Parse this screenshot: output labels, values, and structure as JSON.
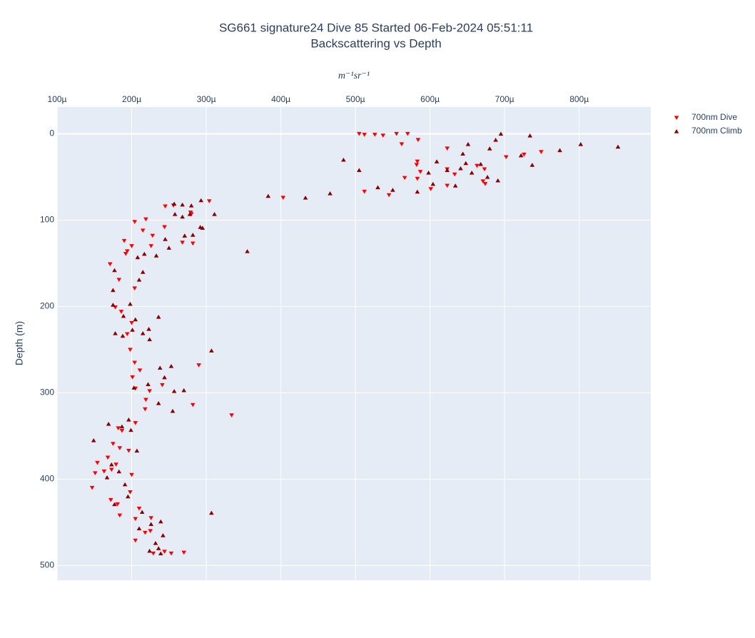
{
  "chart_data": {
    "type": "scatter",
    "title": "SG661 signature24 Dive 85 Started 06-Feb-2024 05:51:11",
    "subtitle": "Backscattering vs Depth",
    "x_label": "m⁻¹sr⁻¹",
    "y_label": "Depth (m)",
    "xlim": [
      0.0001,
      0.000896
    ],
    "ylim": [
      517,
      -31
    ],
    "xticks": [
      {
        "value": 0.0001,
        "label": "100µ"
      },
      {
        "value": 0.0002,
        "label": "200µ"
      },
      {
        "value": 0.0003,
        "label": "300µ"
      },
      {
        "value": 0.0004,
        "label": "400µ"
      },
      {
        "value": 0.0005,
        "label": "500µ"
      },
      {
        "value": 0.0006,
        "label": "600µ"
      },
      {
        "value": 0.0007,
        "label": "700µ"
      },
      {
        "value": 0.0008,
        "label": "800µ"
      }
    ],
    "yticks": [
      0,
      100,
      200,
      300,
      400,
      500
    ],
    "grid": true,
    "legend": "right",
    "series": [
      {
        "name": "700nm Dive",
        "color": "#ff0000",
        "marker": "triangle-down",
        "x": [
          0.000505,
          0.000512,
          0.000526,
          0.000537,
          0.000555,
          0.00057,
          0.000562,
          0.000584,
          0.000623,
          0.000749,
          0.000702,
          0.000726,
          0.000583,
          0.000582,
          0.000587,
          0.000566,
          0.000623,
          0.000633,
          0.000673,
          0.000663,
          0.000583,
          0.000601,
          0.000512,
          0.000545,
          0.000623,
          0.000674,
          0.000671,
          0.000403,
          0.000245,
          0.000256,
          0.000279,
          0.000304,
          0.00028,
          0.000204,
          0.000219,
          0.000244,
          0.000215,
          0.000228,
          0.000268,
          0.000282,
          0.00019,
          0.000226,
          0.000194,
          0.0002,
          0.000171,
          0.000192,
          0.000183,
          0.000204,
          0.000178,
          0.000186,
          0.0002,
          0.000194,
          0.000198,
          0.000204,
          0.00029,
          0.000211,
          0.000201,
          0.000224,
          0.000205,
          0.000219,
          0.000241,
          0.000282,
          0.000334,
          0.000218,
          0.000205,
          0.000182,
          0.000175,
          0.000184,
          0.000196,
          0.000168,
          0.000154,
          0.000163,
          0.000173,
          0.000151,
          0.000147,
          0.000187,
          0.000179,
          0.0002,
          0.000198,
          0.000172,
          0.000181,
          0.00021,
          0.000184,
          0.000205,
          0.000226,
          0.000218,
          0.000205,
          0.000225,
          0.00027,
          0.000253,
          0.000244,
          0.000229
        ],
        "y": [
          0,
          1,
          1,
          2,
          0,
          0,
          12,
          7,
          17,
          21,
          27,
          24,
          32,
          36,
          44,
          51,
          41,
          47,
          41,
          37,
          52,
          64,
          67,
          71,
          60,
          58,
          55,
          74,
          84,
          83,
          91,
          78,
          93,
          102,
          99,
          108,
          112,
          118,
          126,
          127,
          124,
          130,
          136,
          130,
          151,
          139,
          169,
          179,
          201,
          206,
          219,
          232,
          250,
          265,
          268,
          274,
          282,
          298,
          295,
          308,
          291,
          314,
          326,
          319,
          335,
          341,
          359,
          364,
          367,
          375,
          381,
          391,
          389,
          393,
          410,
          344,
          383,
          395,
          415,
          424,
          429,
          434,
          442,
          446,
          445,
          462,
          471,
          460,
          485,
          486,
          484,
          486
        ]
      },
      {
        "name": "700nm Climb",
        "color": "#8b0000",
        "marker": "triangle-up",
        "x": [
          0.000695,
          0.000734,
          0.000688,
          0.00068,
          0.000644,
          0.000651,
          0.000802,
          0.000852,
          0.000774,
          0.000722,
          0.000737,
          0.000609,
          0.000623,
          0.000648,
          0.000641,
          0.000598,
          0.000668,
          0.000677,
          0.000691,
          0.000604,
          0.000634,
          0.000656,
          0.000505,
          0.000484,
          0.00053,
          0.00055,
          0.000583,
          0.000383,
          0.000433,
          0.000466,
          0.000257,
          0.000268,
          0.00028,
          0.000293,
          0.000258,
          0.000268,
          0.000278,
          0.000311,
          0.000292,
          0.000295,
          0.000282,
          0.000271,
          0.000245,
          0.000355,
          0.00025,
          0.000217,
          0.000233,
          0.000208,
          0.000177,
          0.00021,
          0.000175,
          0.000215,
          0.000198,
          0.000175,
          0.000189,
          0.000178,
          0.000205,
          0.000236,
          0.000201,
          0.000188,
          0.000223,
          0.000307,
          0.000215,
          0.000224,
          0.000253,
          0.000238,
          0.000244,
          0.00027,
          0.000257,
          0.000222,
          0.000203,
          0.000236,
          0.000255,
          0.000196,
          0.000199,
          0.000169,
          0.000187,
          0.000149,
          0.000207,
          0.000173,
          0.000183,
          0.000191,
          0.000167,
          0.000195,
          0.000177,
          0.000214,
          0.000307,
          0.000239,
          0.000226,
          0.00021,
          0.000242,
          0.000232,
          0.000236,
          0.000224,
          0.000239
        ],
        "y": [
          0,
          2,
          7,
          17,
          23,
          12,
          12,
          15,
          19,
          25,
          36,
          32,
          42,
          34,
          40,
          45,
          35,
          50,
          54,
          58,
          60,
          45,
          42,
          30,
          62,
          65,
          67,
          72,
          74,
          69,
          81,
          82,
          83,
          77,
          93,
          96,
          93,
          93,
          108,
          109,
          117,
          118,
          122,
          136,
          132,
          139,
          141,
          143,
          158,
          169,
          181,
          160,
          197,
          198,
          211,
          231,
          215,
          212,
          227,
          234,
          226,
          251,
          231,
          238,
          269,
          271,
          282,
          297,
          298,
          290,
          294,
          312,
          321,
          331,
          343,
          336,
          339,
          355,
          367,
          383,
          391,
          406,
          398,
          420,
          429,
          438,
          439,
          449,
          452,
          457,
          465,
          474,
          480,
          483,
          486
        ]
      }
    ]
  }
}
